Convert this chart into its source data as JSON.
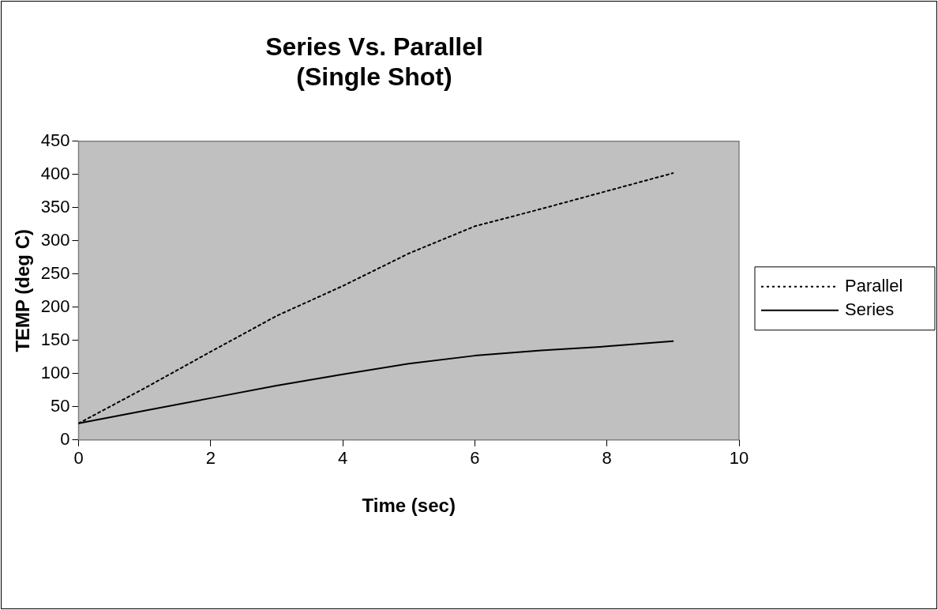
{
  "chart_data": {
    "type": "line",
    "title": "Series Vs. Parallel\n(Single Shot)",
    "xlabel": "Time (sec)",
    "ylabel": "TEMP (deg C)",
    "x": [
      0,
      1,
      2,
      3,
      4,
      5,
      6,
      7,
      8,
      9
    ],
    "series": [
      {
        "name": "Parallel",
        "color": "#000000",
        "line_style": "dotted",
        "values": [
          25,
          78,
          133,
          187,
          232,
          281,
          322,
          348,
          375,
          402
        ]
      },
      {
        "name": "Series",
        "color": "#000000",
        "line_style": "solid",
        "values": [
          25,
          44,
          63,
          82,
          99,
          115,
          127,
          135,
          141,
          149
        ]
      }
    ],
    "xlim": [
      0,
      10
    ],
    "xticks": [
      0,
      2,
      4,
      6,
      8,
      10
    ],
    "ylim": [
      0,
      450
    ],
    "yticks": [
      0,
      50,
      100,
      150,
      200,
      250,
      300,
      350,
      400,
      450
    ],
    "grid": false,
    "legend": "right",
    "marker": "none"
  }
}
